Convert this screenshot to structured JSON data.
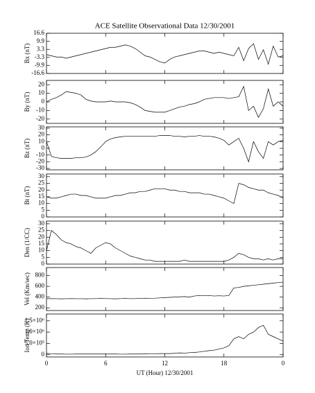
{
  "chart_data": [
    {
      "type": "line",
      "title": "ACE Satellite Observational Data   12/30/2001",
      "ylabel": "Bx (nT)",
      "x": [
        0,
        0.5,
        1,
        1.5,
        2,
        2.5,
        3,
        3.5,
        4,
        4.5,
        5,
        5.5,
        6,
        6.5,
        7,
        7.5,
        8,
        8.5,
        9,
        9.5,
        10,
        10.5,
        11,
        11.5,
        12,
        12.5,
        13,
        13.5,
        14,
        14.5,
        15,
        15.5,
        16,
        16.5,
        17,
        17.5,
        18,
        18.5,
        19,
        19.5,
        20,
        20.5,
        21,
        21.5,
        22,
        22.5,
        23,
        23.5,
        24
      ],
      "values": [
        -1,
        -2,
        -3,
        -3,
        -4,
        -3,
        -2,
        -1,
        0,
        1,
        2,
        3,
        4,
        5,
        5,
        6,
        7,
        6,
        4,
        1,
        -2,
        -3,
        -5,
        -7,
        -8,
        -5,
        -3,
        -2,
        -1,
        0,
        1,
        2,
        2,
        1,
        0,
        1,
        0,
        -1,
        -2,
        5,
        -6,
        4,
        8,
        -5,
        3,
        -9,
        6,
        -3,
        -2
      ],
      "xlim": [
        0,
        24
      ],
      "xticks": [
        0,
        6,
        12,
        18,
        {
          "value": 24,
          "label": "0"
        }
      ],
      "ylim": [
        -16.6,
        16.6
      ],
      "yticks": [
        16.6,
        9.9,
        3.3,
        -3.3,
        -9.9,
        -16.6
      ],
      "color": "#000000"
    },
    {
      "type": "line",
      "ylabel": "By (nT)",
      "x": [
        0,
        0.5,
        1,
        1.5,
        2,
        2.5,
        3,
        3.5,
        4,
        4.5,
        5,
        5.5,
        6,
        6.5,
        7,
        7.5,
        8,
        8.5,
        9,
        9.5,
        10,
        10.5,
        11,
        11.5,
        12,
        12.5,
        13,
        13.5,
        14,
        14.5,
        15,
        15.5,
        16,
        16.5,
        17,
        17.5,
        18,
        18.5,
        19,
        19.5,
        20,
        20.5,
        21,
        21.5,
        22,
        22.5,
        23,
        23.5,
        24
      ],
      "values": [
        0,
        3,
        5,
        8,
        12,
        11,
        10,
        8,
        3,
        1,
        0,
        0,
        0,
        1,
        0,
        0,
        0,
        -1,
        -3,
        -6,
        -10,
        -11,
        -12,
        -12,
        -12,
        -10,
        -8,
        -6,
        -5,
        -3,
        -2,
        0,
        3,
        4,
        5,
        5,
        5,
        4,
        5,
        6,
        18,
        -10,
        -5,
        -18,
        -8,
        15,
        -5,
        0,
        -5
      ],
      "xlim": [
        0,
        24
      ],
      "xticks": [
        0,
        6,
        12,
        18,
        {
          "value": 24,
          "label": "0"
        }
      ],
      "ylim": [
        -25,
        25
      ],
      "yticks": [
        20,
        10,
        0,
        -10,
        -20
      ],
      "color": "#000000"
    },
    {
      "type": "line",
      "ylabel": "Bz (nT)",
      "x": [
        0,
        0.5,
        1,
        1.5,
        2,
        2.5,
        3,
        3.5,
        4,
        4.5,
        5,
        5.5,
        6,
        6.5,
        7,
        7.5,
        8,
        8.5,
        9,
        9.5,
        10,
        10.5,
        11,
        11.5,
        12,
        12.5,
        13,
        13.5,
        14,
        14.5,
        15,
        15.5,
        16,
        16.5,
        17,
        17.5,
        18,
        18.5,
        19,
        19.5,
        20,
        20.5,
        21,
        21.5,
        22,
        22.5,
        23,
        23.5,
        24
      ],
      "values": [
        10,
        -12,
        -14,
        -15,
        -15,
        -15,
        -14,
        -14,
        -13,
        -10,
        -5,
        2,
        10,
        14,
        16,
        17,
        18,
        18,
        18,
        18,
        18,
        18,
        18,
        19,
        19,
        19,
        18,
        18,
        17,
        18,
        18,
        19,
        18,
        18,
        17,
        15,
        12,
        5,
        10,
        15,
        0,
        -20,
        10,
        -5,
        -15,
        10,
        5,
        10,
        12
      ],
      "xlim": [
        0,
        24
      ],
      "xticks": [
        0,
        6,
        12,
        18,
        {
          "value": 24,
          "label": "0"
        }
      ],
      "ylim": [
        -32,
        32
      ],
      "yticks": [
        30,
        20,
        10,
        0,
        -10,
        -20,
        -30
      ],
      "color": "#000000"
    },
    {
      "type": "line",
      "ylabel": "Bt (nT)",
      "x": [
        0,
        0.5,
        1,
        1.5,
        2,
        2.5,
        3,
        3.5,
        4,
        4.5,
        5,
        5.5,
        6,
        6.5,
        7,
        7.5,
        8,
        8.5,
        9,
        9.5,
        10,
        10.5,
        11,
        11.5,
        12,
        12.5,
        13,
        13.5,
        14,
        14.5,
        15,
        15.5,
        16,
        16.5,
        17,
        17.5,
        18,
        18.5,
        19,
        19.5,
        20,
        20.5,
        21,
        21.5,
        22,
        22.5,
        23,
        23.5,
        24
      ],
      "values": [
        15,
        14,
        14,
        15,
        16,
        17,
        17,
        16,
        16,
        15,
        14,
        14,
        14,
        15,
        16,
        16,
        17,
        18,
        18,
        19,
        19,
        20,
        21,
        21,
        21,
        20,
        20,
        19,
        19,
        18,
        18,
        18,
        17,
        17,
        16,
        15,
        14,
        12,
        10,
        25,
        24,
        22,
        21,
        20,
        20,
        18,
        17,
        16,
        14
      ],
      "xlim": [
        0,
        24
      ],
      "xticks": [
        0,
        6,
        12,
        18,
        {
          "value": 24,
          "label": "0"
        }
      ],
      "ylim": [
        0,
        32
      ],
      "yticks": [
        30,
        25,
        20,
        15,
        10,
        5,
        0
      ],
      "color": "#000000"
    },
    {
      "type": "line",
      "ylabel": "Den (1/CC)",
      "x": [
        0,
        0.5,
        1,
        1.5,
        2,
        2.5,
        3,
        3.5,
        4,
        4.5,
        5,
        5.5,
        6,
        6.5,
        7,
        7.5,
        8,
        8.5,
        9,
        9.5,
        10,
        10.5,
        11,
        11.5,
        12,
        12.5,
        13,
        13.5,
        14,
        14.5,
        15,
        15.5,
        16,
        16.5,
        17,
        17.5,
        18,
        18.5,
        19,
        19.5,
        20,
        20.5,
        21,
        21.5,
        22,
        22.5,
        23,
        23.5,
        24
      ],
      "values": [
        10,
        25,
        22,
        18,
        16,
        15,
        13,
        12,
        10,
        8,
        12,
        14,
        16,
        15,
        12,
        10,
        8,
        6,
        5,
        4,
        3,
        3,
        2,
        2,
        2,
        2,
        2,
        2,
        3,
        2,
        2,
        2,
        2,
        2,
        2,
        2,
        2,
        3,
        5,
        8,
        7,
        5,
        4,
        4,
        3,
        4,
        3,
        4,
        4
      ],
      "xlim": [
        0,
        24
      ],
      "xticks": [
        0,
        6,
        12,
        18,
        {
          "value": 24,
          "label": "0"
        }
      ],
      "ylim": [
        0,
        32
      ],
      "yticks": [
        30,
        25,
        20,
        15,
        10,
        5,
        0
      ],
      "color": "#000000"
    },
    {
      "type": "line",
      "ylabel": "Vel (Km/sec)",
      "x": [
        0,
        0.5,
        1,
        1.5,
        2,
        2.5,
        3,
        3.5,
        4,
        4.5,
        5,
        5.5,
        6,
        6.5,
        7,
        7.5,
        8,
        8.5,
        9,
        9.5,
        10,
        10.5,
        11,
        11.5,
        12,
        12.5,
        13,
        13.5,
        14,
        14.5,
        15,
        15.5,
        16,
        16.5,
        17,
        17.5,
        18,
        18.5,
        19,
        19.5,
        20,
        20.5,
        21,
        21.5,
        22,
        22.5,
        23,
        23.5,
        24
      ],
      "values": [
        370,
        372,
        370,
        368,
        370,
        372,
        370,
        370,
        368,
        370,
        372,
        375,
        372,
        370,
        368,
        372,
        375,
        370,
        372,
        375,
        380,
        378,
        380,
        385,
        390,
        395,
        400,
        405,
        410,
        400,
        420,
        430,
        425,
        430,
        420,
        425,
        420,
        430,
        570,
        580,
        600,
        610,
        620,
        630,
        640,
        650,
        660,
        670,
        680
      ],
      "xlim": [
        0,
        24
      ],
      "xticks": [
        0,
        6,
        12,
        18,
        {
          "value": 24,
          "label": "0"
        }
      ],
      "ylim": [
        150,
        950
      ],
      "yticks": [
        800,
        600,
        400,
        200
      ],
      "color": "#000000"
    },
    {
      "type": "line",
      "ylabel": "Ion Temp (K)",
      "xlabel": "UT (Hour)  12/30/2001",
      "x": [
        0,
        0.5,
        1,
        1.5,
        2,
        2.5,
        3,
        3.5,
        4,
        4.5,
        5,
        5.5,
        6,
        6.5,
        7,
        7.5,
        8,
        8.5,
        9,
        9.5,
        10,
        10.5,
        11,
        11.5,
        12,
        12.5,
        13,
        13.5,
        14,
        14.5,
        15,
        15.5,
        16,
        16.5,
        17,
        17.5,
        18,
        18.5,
        19,
        19.5,
        20,
        20.5,
        21,
        21.5,
        22,
        22.5,
        23,
        23.5,
        24
      ],
      "values": [
        60000,
        40000,
        30000,
        30000,
        25000,
        25000,
        30000,
        30000,
        30000,
        30000,
        30000,
        30000,
        30000,
        30000,
        30000,
        25000,
        25000,
        30000,
        30000,
        30000,
        35000,
        40000,
        40000,
        50000,
        50000,
        50000,
        60000,
        80000,
        70000,
        90000,
        100000,
        120000,
        150000,
        180000,
        200000,
        250000,
        300000,
        400000,
        700000,
        800000,
        700000,
        900000,
        1000000,
        1200000,
        1300000,
        900000,
        800000,
        700000,
        600000
      ],
      "xlim": [
        0,
        24
      ],
      "xticks": [
        0,
        6,
        12,
        18,
        {
          "value": 24,
          "label": "0"
        }
      ],
      "ylim": [
        -100000,
        1800000
      ],
      "yticks": [
        {
          "value": 1500000,
          "label": "1.5×10⁶"
        },
        {
          "value": 1000000,
          "label": "1.0×10⁶"
        },
        {
          "value": 500000,
          "label": "5.0×10⁵"
        },
        0
      ],
      "color": "#000000"
    }
  ]
}
